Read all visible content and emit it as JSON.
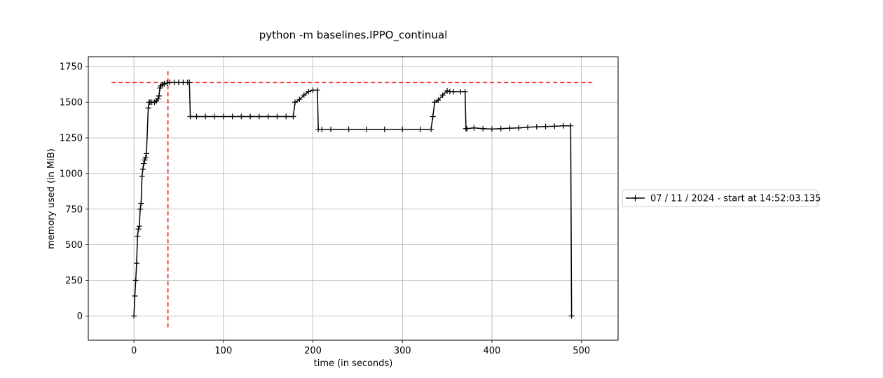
{
  "chart_data": {
    "type": "line",
    "title": "python -m baselines.IPPO_continual",
    "xlabel": "time (in seconds)",
    "ylabel": "memory used (in MiB)",
    "xlim": [
      -51,
      541
    ],
    "ylim": [
      -170,
      1820
    ],
    "xticks": [
      0,
      100,
      200,
      300,
      400,
      500
    ],
    "yticks": [
      0,
      250,
      500,
      750,
      1000,
      1250,
      1500,
      1750
    ],
    "grid": true,
    "legend_position": "outside-right",
    "series": [
      {
        "name": "07 / 11 / 2024 - start at 14:52:03.135",
        "color": "#000000",
        "marker": "+",
        "x": [
          0,
          1,
          2,
          3,
          4,
          5,
          6,
          7,
          8,
          9,
          10,
          11,
          12,
          13,
          14,
          16,
          17,
          18,
          20,
          23,
          25,
          27,
          28,
          29,
          30,
          32,
          34,
          37,
          40,
          45,
          50,
          55,
          60,
          62,
          63,
          70,
          80,
          90,
          100,
          110,
          120,
          130,
          140,
          150,
          160,
          170,
          178,
          180,
          185,
          190,
          195,
          200,
          205,
          206,
          210,
          220,
          240,
          260,
          280,
          300,
          320,
          332,
          334,
          336,
          340,
          345,
          350,
          353,
          357,
          365,
          370,
          371,
          372,
          380,
          390,
          400,
          410,
          420,
          430,
          440,
          450,
          460,
          470,
          480,
          488,
          489
        ],
        "y": [
          0,
          140,
          250,
          370,
          560,
          610,
          630,
          750,
          790,
          980,
          1030,
          1070,
          1095,
          1110,
          1140,
          1460,
          1500,
          1500,
          1500,
          1500,
          1510,
          1525,
          1545,
          1600,
          1615,
          1625,
          1630,
          1635,
          1640,
          1640,
          1640,
          1640,
          1640,
          1640,
          1400,
          1400,
          1400,
          1400,
          1400,
          1400,
          1400,
          1400,
          1400,
          1400,
          1400,
          1400,
          1400,
          1500,
          1520,
          1550,
          1575,
          1585,
          1585,
          1310,
          1310,
          1310,
          1310,
          1310,
          1310,
          1310,
          1310,
          1310,
          1400,
          1500,
          1515,
          1550,
          1580,
          1575,
          1575,
          1575,
          1575,
          1315,
          1315,
          1320,
          1315,
          1312,
          1315,
          1318,
          1320,
          1325,
          1328,
          1330,
          1332,
          1335,
          1335,
          0
        ]
      }
    ],
    "reference_lines": [
      {
        "orientation": "horizontal",
        "value": 1640,
        "from": -25,
        "to": 515,
        "color": "#ff0000",
        "style": "dashed"
      },
      {
        "orientation": "vertical",
        "value": 38,
        "from": -80,
        "to": 1720,
        "color": "#ff0000",
        "style": "dashed"
      }
    ]
  }
}
